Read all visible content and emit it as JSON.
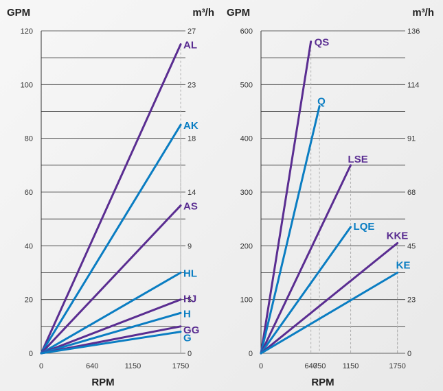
{
  "colors": {
    "purple": "#5a2d91",
    "blue": "#0a7dc2",
    "grid": "#333333",
    "guide": "#b0b0b0"
  },
  "chart_data": [
    {
      "type": "line",
      "y_unit_label": "GPM",
      "y2_unit_label": "m³/h",
      "xlabel": "RPM",
      "ylim": [
        0,
        120
      ],
      "y_ticks": [
        0,
        20,
        40,
        60,
        80,
        100,
        120
      ],
      "y2_ticks": [
        "0",
        "5",
        "9",
        "14",
        "18",
        "23",
        "27"
      ],
      "x_ticks": [
        "0",
        "640",
        "1150",
        "1750"
      ],
      "series": [
        {
          "name": "AL",
          "color": "purple",
          "points": [
            [
              0,
              0
            ],
            [
              1750,
              115
            ]
          ]
        },
        {
          "name": "AK",
          "color": "blue",
          "points": [
            [
              0,
              0
            ],
            [
              1750,
              85
            ]
          ]
        },
        {
          "name": "AS",
          "color": "purple",
          "points": [
            [
              0,
              0
            ],
            [
              1750,
              55
            ]
          ]
        },
        {
          "name": "HL",
          "color": "blue",
          "points": [
            [
              0,
              0
            ],
            [
              1750,
              30
            ]
          ]
        },
        {
          "name": "HJ",
          "color": "purple",
          "points": [
            [
              0,
              0
            ],
            [
              1750,
              20
            ]
          ]
        },
        {
          "name": "H",
          "color": "blue",
          "points": [
            [
              0,
              0
            ],
            [
              1750,
              15
            ]
          ]
        },
        {
          "name": "GG",
          "color": "purple",
          "points": [
            [
              0,
              0
            ],
            [
              1750,
              10
            ]
          ]
        },
        {
          "name": "G",
          "color": "blue",
          "points": [
            [
              0,
              0
            ],
            [
              1750,
              8
            ]
          ]
        }
      ]
    },
    {
      "type": "line",
      "y_unit_label": "GPM",
      "y2_unit_label": "m³/h",
      "xlabel": "RPM",
      "ylim": [
        0,
        600
      ],
      "y_ticks": [
        0,
        100,
        200,
        300,
        400,
        500,
        600
      ],
      "y2_ticks": [
        "0",
        "23",
        "45",
        "68",
        "91",
        "114",
        "136"
      ],
      "x_ticks": [
        "0",
        "640",
        "750",
        "1150",
        "1750"
      ],
      "series": [
        {
          "name": "QS",
          "color": "purple",
          "points": [
            [
              0,
              0
            ],
            [
              640,
              580
            ]
          ]
        },
        {
          "name": "Q",
          "color": "blue",
          "points": [
            [
              0,
              0
            ],
            [
              750,
              460
            ]
          ]
        },
        {
          "name": "LSE",
          "color": "purple",
          "points": [
            [
              0,
              0
            ],
            [
              1150,
              350
            ]
          ]
        },
        {
          "name": "LQE",
          "color": "blue",
          "points": [
            [
              0,
              0
            ],
            [
              1150,
              235
            ]
          ]
        },
        {
          "name": "KKE",
          "color": "purple",
          "points": [
            [
              0,
              0
            ],
            [
              1750,
              205
            ]
          ]
        },
        {
          "name": "KE",
          "color": "blue",
          "points": [
            [
              0,
              0
            ],
            [
              1750,
              150
            ]
          ]
        }
      ]
    }
  ]
}
